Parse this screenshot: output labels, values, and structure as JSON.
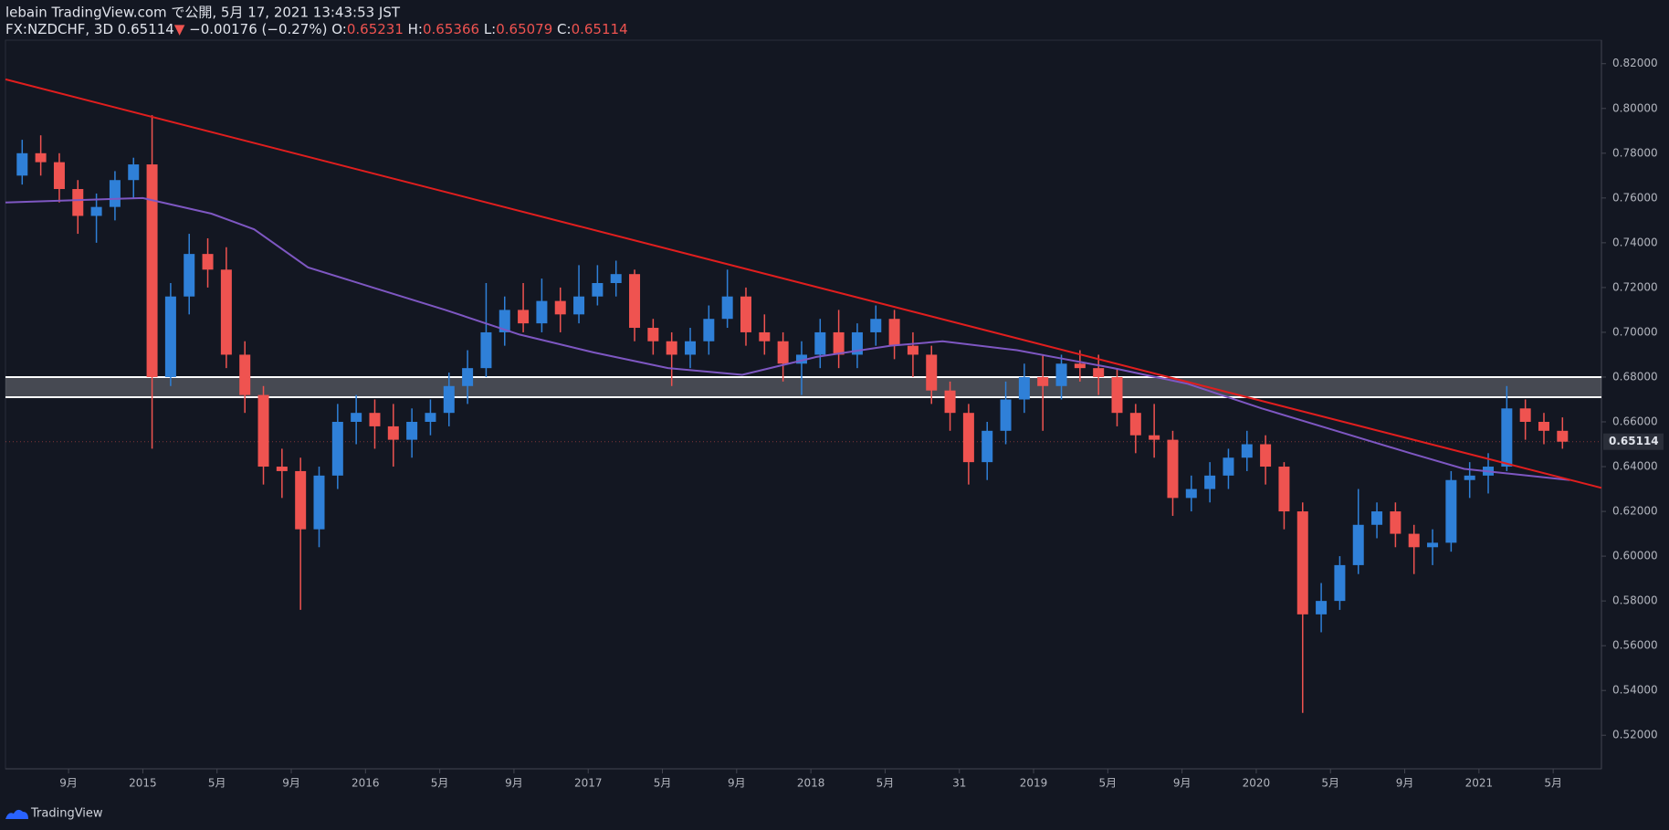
{
  "header": {
    "publisher": "lebain TradingView.com で公開, 5月 17, 2021 13:43:53 JST",
    "symbol": "FX:NZDCHF, 3D",
    "last": "0.65114",
    "arrow": "▼",
    "change": "−0.00176 (−0.27%)",
    "o_label": "O:",
    "o": "0.65231",
    "h_label": "H:",
    "h": "0.65366",
    "l_label": "L:",
    "l": "0.65079",
    "c_label": "C:",
    "c": "0.65114"
  },
  "footer": {
    "brand": "TradingView"
  },
  "chart_data": {
    "type": "candlestick",
    "up_color": "#2f80d8",
    "down_color": "#ef5350",
    "xlim": [
      4.6,
      90.6
    ],
    "ylim": [
      0.505,
      0.8305
    ],
    "xticks": [
      {
        "value": 8,
        "label": "9月"
      },
      {
        "value": 12,
        "label": "2015"
      },
      {
        "value": 16,
        "label": "5月"
      },
      {
        "value": 20,
        "label": "9月"
      },
      {
        "value": 24,
        "label": "2016"
      },
      {
        "value": 28,
        "label": "5月"
      },
      {
        "value": 32,
        "label": "9月"
      },
      {
        "value": 36,
        "label": "2017"
      },
      {
        "value": 40,
        "label": "5月"
      },
      {
        "value": 44,
        "label": "9月"
      },
      {
        "value": 48,
        "label": "2018"
      },
      {
        "value": 52,
        "label": "5月"
      },
      {
        "value": 56,
        "label": "31"
      },
      {
        "value": 60,
        "label": "2019"
      },
      {
        "value": 64,
        "label": "5月"
      },
      {
        "value": 68,
        "label": "9月"
      },
      {
        "value": 72,
        "label": "2020"
      },
      {
        "value": 76,
        "label": "5月"
      },
      {
        "value": 80,
        "label": "9月"
      },
      {
        "value": 84,
        "label": "2021"
      },
      {
        "value": 88,
        "label": "5月"
      }
    ],
    "yticks": [
      {
        "value": 0.52,
        "label": "0.52000"
      },
      {
        "value": 0.54,
        "label": "0.54000"
      },
      {
        "value": 0.56,
        "label": "0.56000"
      },
      {
        "value": 0.58,
        "label": "0.58000"
      },
      {
        "value": 0.6,
        "label": "0.60000"
      },
      {
        "value": 0.62,
        "label": "0.62000"
      },
      {
        "value": 0.64,
        "label": "0.64000"
      },
      {
        "value": 0.66,
        "label": "0.66000"
      },
      {
        "value": 0.68,
        "label": "0.68000"
      },
      {
        "value": 0.7,
        "label": "0.70000"
      },
      {
        "value": 0.72,
        "label": "0.72000"
      },
      {
        "value": 0.74,
        "label": "0.74000"
      },
      {
        "value": 0.76,
        "label": "0.76000"
      },
      {
        "value": 0.78,
        "label": "0.78000"
      },
      {
        "value": 0.8,
        "label": "0.80000"
      },
      {
        "value": 0.82,
        "label": "0.82000"
      }
    ],
    "x": [
      5.5,
      6.5,
      7.5,
      8.5,
      9.5,
      10.5,
      11.5,
      12.5,
      13.5,
      14.5,
      15.5,
      16.5,
      17.5,
      18.5,
      19.5,
      20.5,
      21.5,
      22.5,
      23.5,
      24.5,
      25.5,
      26.5,
      27.5,
      28.5,
      29.5,
      30.5,
      31.5,
      32.5,
      33.5,
      34.5,
      35.5,
      36.5,
      37.5,
      38.5,
      39.5,
      40.5,
      41.5,
      42.5,
      43.5,
      44.5,
      45.5,
      46.5,
      47.5,
      48.5,
      49.5,
      50.5,
      51.5,
      52.5,
      53.5,
      54.5,
      55.5,
      56.5,
      57.5,
      58.5,
      59.5,
      60.5,
      61.5,
      62.5,
      63.5,
      64.5,
      65.5,
      66.5,
      67.5,
      68.5,
      69.5,
      70.5,
      71.5,
      72.5,
      73.5,
      74.5,
      75.5,
      76.5,
      77.5,
      78.5,
      79.5,
      80.5,
      81.5,
      82.5,
      83.5,
      84.5,
      85.5,
      86.5,
      87.5,
      88.5
    ],
    "open": [
      0.77,
      0.78,
      0.776,
      0.764,
      0.752,
      0.756,
      0.768,
      0.775,
      0.68,
      0.716,
      0.735,
      0.728,
      0.69,
      0.672,
      0.64,
      0.638,
      0.612,
      0.636,
      0.66,
      0.664,
      0.658,
      0.652,
      0.66,
      0.664,
      0.676,
      0.684,
      0.7,
      0.71,
      0.704,
      0.714,
      0.708,
      0.716,
      0.722,
      0.726,
      0.702,
      0.696,
      0.69,
      0.696,
      0.706,
      0.716,
      0.7,
      0.696,
      0.686,
      0.69,
      0.7,
      0.69,
      0.7,
      0.706,
      0.694,
      0.69,
      0.674,
      0.664,
      0.642,
      0.656,
      0.67,
      0.68,
      0.676,
      0.686,
      0.684,
      0.68,
      0.664,
      0.654,
      0.652,
      0.626,
      0.63,
      0.636,
      0.644,
      0.65,
      0.64,
      0.62,
      0.574,
      0.58,
      0.596,
      0.614,
      0.62,
      0.61,
      0.604,
      0.606,
      0.634,
      0.636,
      0.64,
      0.666,
      0.66,
      0.656
    ],
    "high": [
      0.786,
      0.788,
      0.78,
      0.768,
      0.762,
      0.772,
      0.778,
      0.797,
      0.722,
      0.744,
      0.742,
      0.738,
      0.696,
      0.676,
      0.648,
      0.644,
      0.64,
      0.668,
      0.672,
      0.67,
      0.668,
      0.666,
      0.67,
      0.682,
      0.692,
      0.722,
      0.716,
      0.722,
      0.724,
      0.72,
      0.73,
      0.73,
      0.732,
      0.728,
      0.706,
      0.7,
      0.702,
      0.712,
      0.728,
      0.72,
      0.708,
      0.7,
      0.696,
      0.706,
      0.71,
      0.704,
      0.712,
      0.71,
      0.7,
      0.694,
      0.678,
      0.668,
      0.66,
      0.678,
      0.686,
      0.69,
      0.69,
      0.692,
      0.69,
      0.684,
      0.668,
      0.668,
      0.656,
      0.636,
      0.642,
      0.648,
      0.656,
      0.654,
      0.642,
      0.624,
      0.588,
      0.6,
      0.63,
      0.624,
      0.624,
      0.614,
      0.612,
      0.638,
      0.642,
      0.646,
      0.676,
      0.67,
      0.664,
      0.662
    ],
    "low": [
      0.766,
      0.77,
      0.758,
      0.744,
      0.74,
      0.75,
      0.76,
      0.648,
      0.676,
      0.708,
      0.72,
      0.684,
      0.664,
      0.632,
      0.626,
      0.576,
      0.604,
      0.63,
      0.65,
      0.648,
      0.64,
      0.644,
      0.654,
      0.658,
      0.668,
      0.68,
      0.694,
      0.7,
      0.7,
      0.7,
      0.704,
      0.712,
      0.716,
      0.696,
      0.69,
      0.676,
      0.684,
      0.69,
      0.702,
      0.694,
      0.69,
      0.678,
      0.672,
      0.684,
      0.684,
      0.684,
      0.694,
      0.688,
      0.68,
      0.668,
      0.656,
      0.632,
      0.634,
      0.65,
      0.664,
      0.656,
      0.67,
      0.678,
      0.672,
      0.658,
      0.646,
      0.644,
      0.618,
      0.62,
      0.624,
      0.63,
      0.638,
      0.632,
      0.612,
      0.53,
      0.566,
      0.576,
      0.592,
      0.608,
      0.604,
      0.592,
      0.596,
      0.602,
      0.626,
      0.628,
      0.638,
      0.652,
      0.65,
      0.648
    ],
    "close": [
      0.78,
      0.776,
      0.764,
      0.752,
      0.756,
      0.768,
      0.775,
      0.68,
      0.716,
      0.735,
      0.728,
      0.69,
      0.672,
      0.64,
      0.638,
      0.612,
      0.636,
      0.66,
      0.664,
      0.658,
      0.652,
      0.66,
      0.664,
      0.676,
      0.684,
      0.7,
      0.71,
      0.704,
      0.714,
      0.708,
      0.716,
      0.722,
      0.726,
      0.702,
      0.696,
      0.69,
      0.696,
      0.706,
      0.716,
      0.7,
      0.696,
      0.686,
      0.69,
      0.7,
      0.69,
      0.7,
      0.706,
      0.694,
      0.69,
      0.674,
      0.664,
      0.642,
      0.656,
      0.67,
      0.68,
      0.676,
      0.686,
      0.684,
      0.68,
      0.664,
      0.654,
      0.652,
      0.626,
      0.63,
      0.636,
      0.644,
      0.65,
      0.64,
      0.62,
      0.574,
      0.58,
      0.596,
      0.614,
      0.62,
      0.61,
      0.604,
      0.606,
      0.634,
      0.636,
      0.64,
      0.666,
      0.66,
      0.656,
      0.65114
    ],
    "ma": {
      "color": "#7e57c2",
      "x": [
        4.6,
        12,
        15.7,
        18,
        20.9,
        24.4,
        28.3,
        32.3,
        36.3,
        40.3,
        44.3,
        48.3,
        52.3,
        55.1,
        59.1,
        64.3,
        68.3,
        72.3,
        76.3,
        80.3,
        83.2,
        88.9
      ],
      "values": [
        0.758,
        0.76,
        0.753,
        0.746,
        0.729,
        0.72,
        0.71,
        0.699,
        0.691,
        0.684,
        0.681,
        0.689,
        0.694,
        0.696,
        0.692,
        0.684,
        0.677,
        0.666,
        0.656,
        0.646,
        0.639,
        0.634
      ]
    },
    "trendline": {
      "color": "#e01e1e",
      "x": [
        4.6,
        90.6
      ],
      "values": [
        0.813,
        0.6305
      ]
    },
    "zone": {
      "color": "#ffffff",
      "levels": [
        0.671,
        0.68
      ]
    },
    "last_price": {
      "value": 0.65114,
      "label": "0.65114"
    }
  }
}
